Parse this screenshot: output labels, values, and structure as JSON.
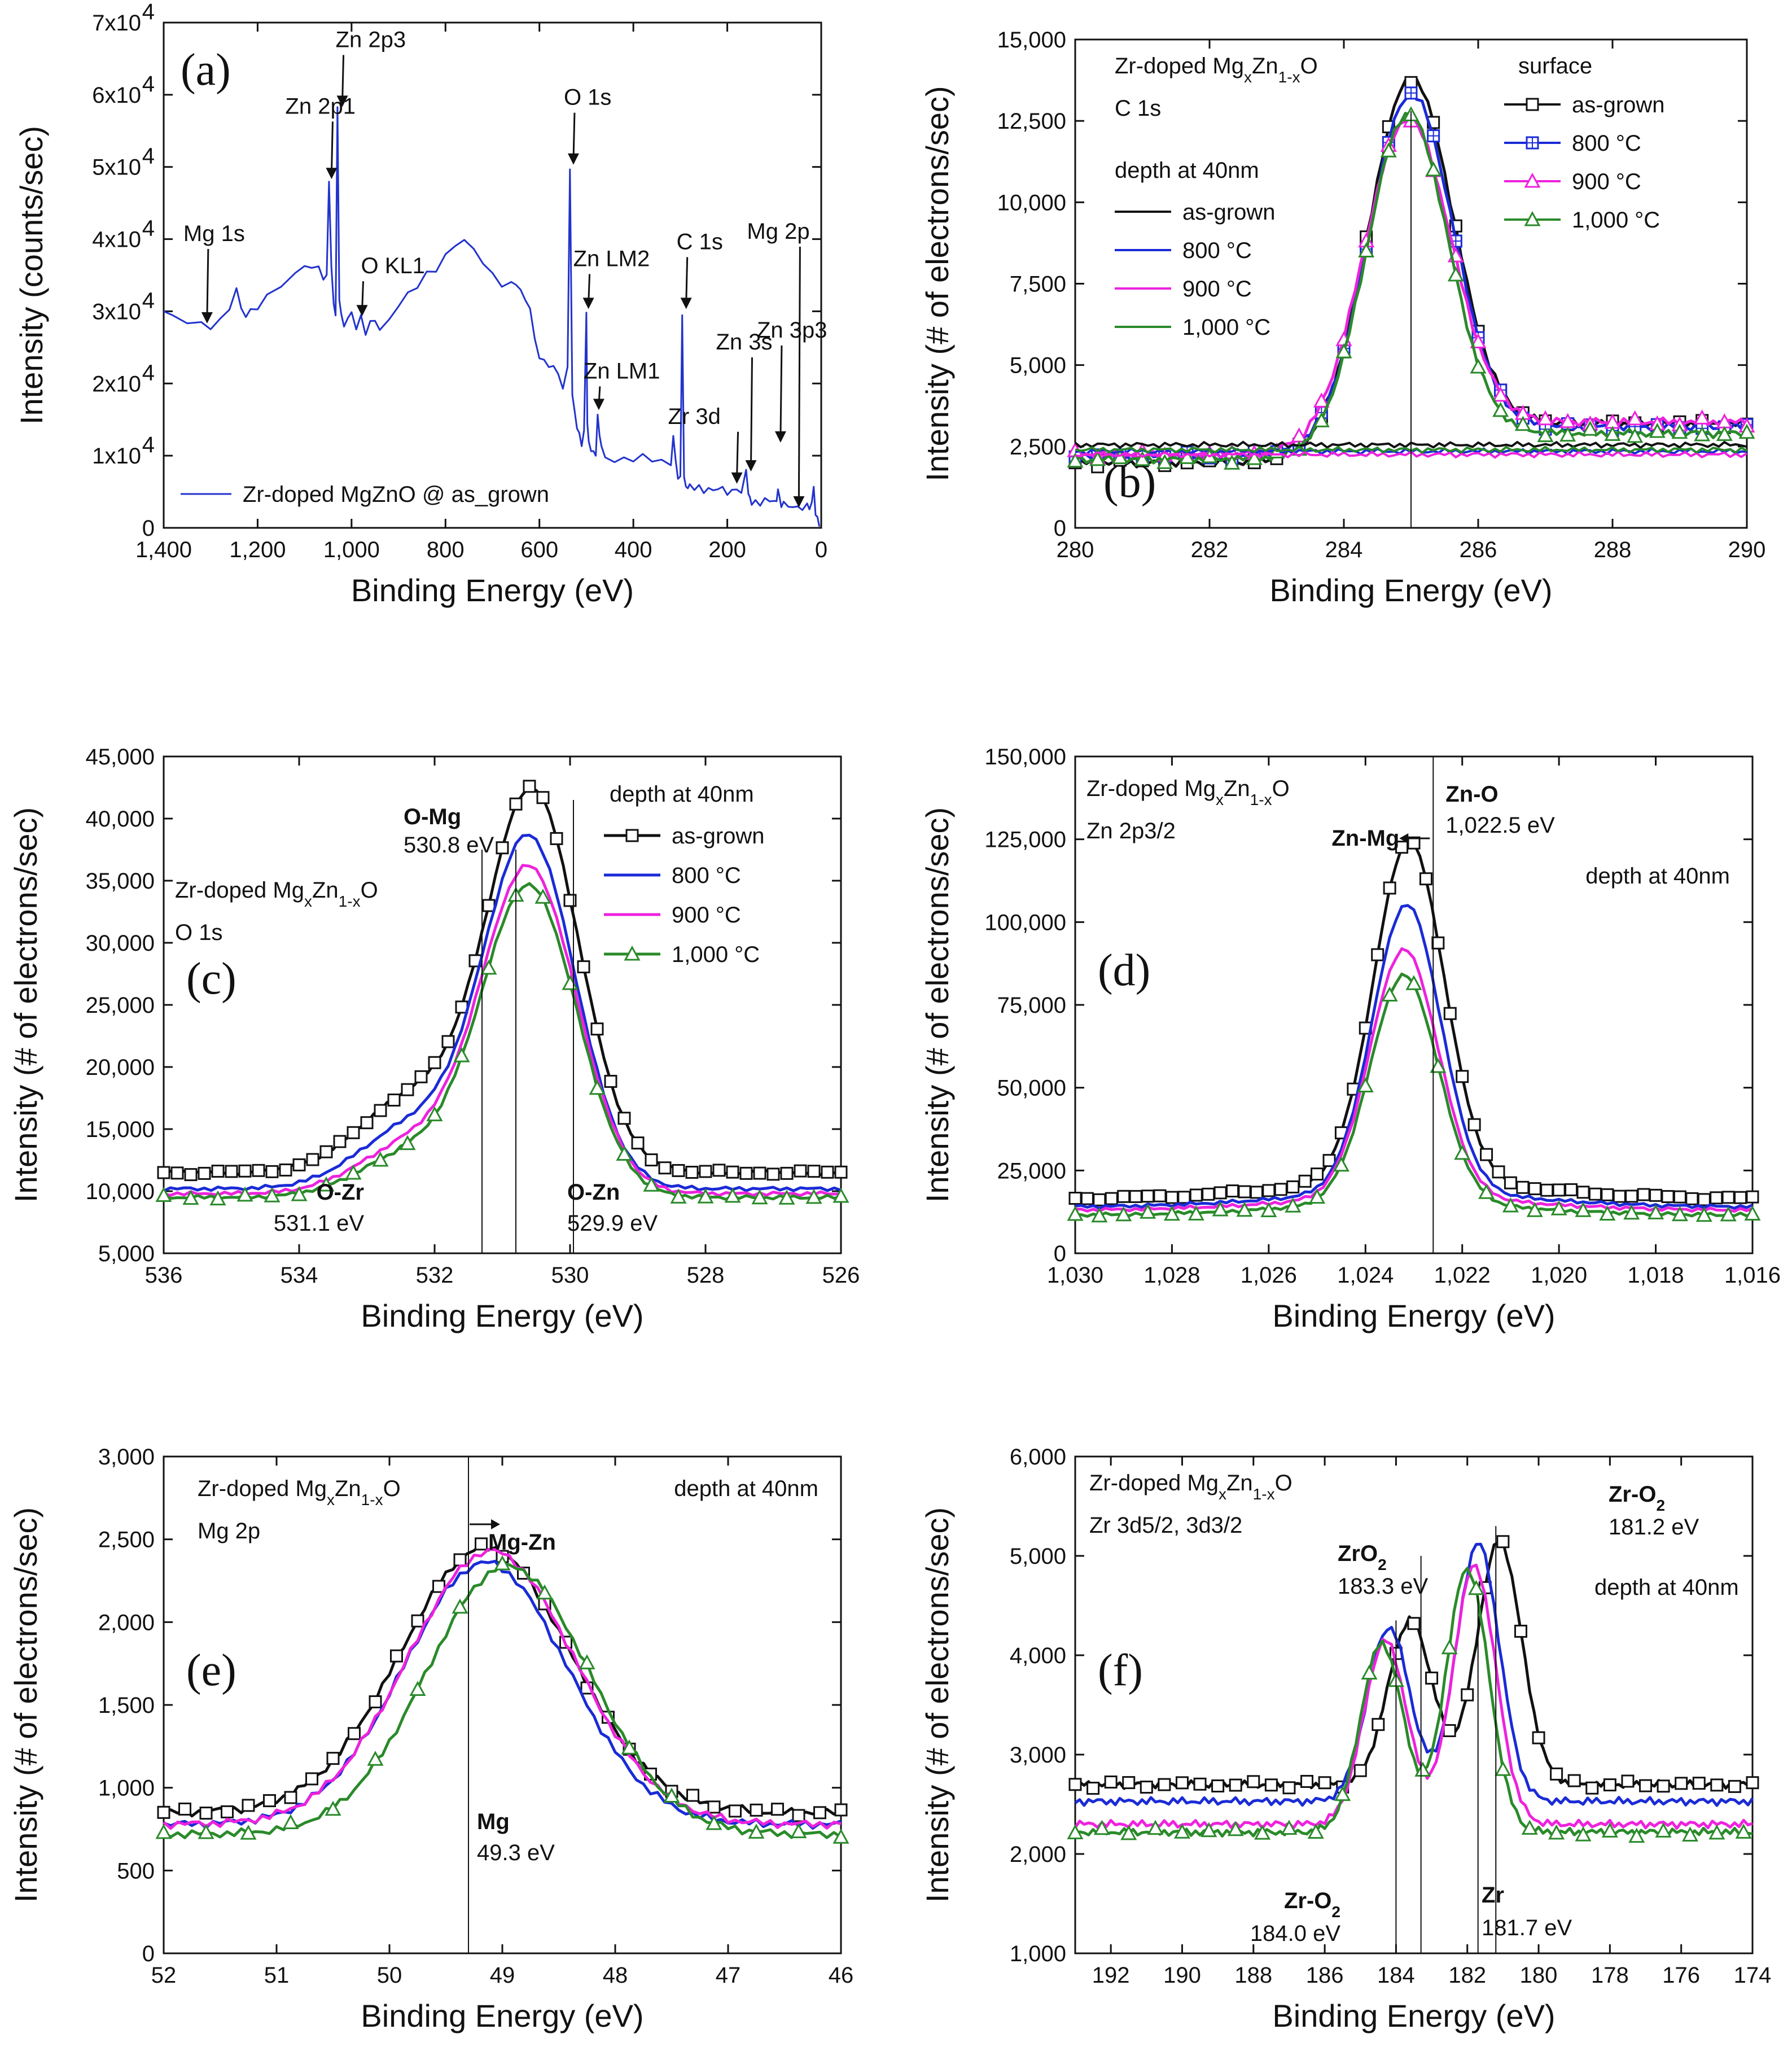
{
  "figure": {
    "colors": {
      "as_grown": "#111111",
      "c800": "#1a2bd6",
      "c900": "#ee22dd",
      "c1000": "#2a8a2a",
      "survey": "#2233cc"
    }
  },
  "chart_data": [
    {
      "id": "a",
      "panel": "(a)",
      "type": "line",
      "xlabel": "Binding Energy (eV)",
      "ylabel": "Intensity (counts/sec)",
      "xlim": [
        1400,
        0
      ],
      "ylim": [
        0,
        70000
      ],
      "xticks": [
        1400,
        1200,
        1000,
        800,
        600,
        400,
        200,
        0
      ],
      "xtick_labels": [
        "1,400",
        "1,200",
        "1,000",
        "800",
        "600",
        "400",
        "200",
        "0"
      ],
      "yticks": [
        0,
        10000,
        20000,
        30000,
        40000,
        50000,
        60000,
        70000
      ],
      "ytick_labels": [
        "0",
        "1x10",
        "2x10",
        "3x10",
        "4x10",
        "5x10",
        "6x10",
        "7x10"
      ],
      "ytick_exponent": "4",
      "legend": "Zr-doped MgZnO @ as_grown",
      "series": [
        {
          "name": "Zr-doped MgZnO @ as_grown",
          "color_key": "survey",
          "x": [
            1400,
            1380,
            1350,
            1320,
            1300,
            1280,
            1260,
            1245,
            1235,
            1225,
            1215,
            1200,
            1180,
            1150,
            1120,
            1100,
            1085,
            1070,
            1060,
            1053,
            1048,
            1043,
            1038,
            1034,
            1030,
            1026,
            1022,
            1016,
            1008,
            1000,
            990,
            980,
            970,
            960,
            950,
            940,
            920,
            900,
            880,
            860,
            840,
            820,
            800,
            780,
            760,
            740,
            720,
            700,
            680,
            660,
            650,
            640,
            630,
            620,
            610,
            600,
            590,
            580,
            570,
            560,
            550,
            540,
            535,
            530,
            525,
            520,
            515,
            510,
            505,
            500,
            498,
            495,
            490,
            485,
            480,
            476,
            472,
            468,
            460,
            440,
            420,
            400,
            380,
            360,
            340,
            320,
            315,
            310,
            305,
            300,
            296,
            292,
            288,
            284,
            280,
            270,
            260,
            250,
            240,
            230,
            220,
            210,
            200,
            190,
            180,
            170,
            160,
            155,
            152,
            148,
            140,
            130,
            120,
            110,
            100,
            95,
            92,
            89,
            85,
            80,
            70,
            60,
            50,
            40,
            30,
            25,
            20,
            16,
            12,
            8,
            4
          ],
          "y": [
            30000,
            29000,
            28500,
            28000,
            28200,
            28800,
            30500,
            33000,
            30000,
            29500,
            30000,
            31000,
            32000,
            33500,
            35000,
            36000,
            36500,
            36000,
            35000,
            34500,
            48000,
            36000,
            31000,
            30000,
            58000,
            32000,
            29000,
            28000,
            29000,
            30000,
            28000,
            29000,
            27000,
            28000,
            29000,
            27500,
            29000,
            31000,
            32000,
            33500,
            35000,
            36000,
            38000,
            39000,
            40000,
            38000,
            37000,
            35000,
            34000,
            34000,
            33500,
            33000,
            31000,
            31000,
            26000,
            24000,
            23000,
            22000,
            22500,
            21000,
            20000,
            22000,
            50000,
            18000,
            16000,
            14000,
            13000,
            12000,
            13000,
            30000,
            14000,
            12000,
            11000,
            10500,
            10500,
            15000,
            13000,
            11000,
            10000,
            9500,
            9500,
            9500,
            9500,
            9500,
            9300,
            9000,
            13000,
            9000,
            7000,
            6500,
            30000,
            7000,
            6000,
            5500,
            5500,
            5500,
            5500,
            5500,
            5400,
            5300,
            5200,
            5200,
            5000,
            5000,
            6000,
            4500,
            8000,
            4500,
            4000,
            3800,
            3600,
            3600,
            3600,
            3600,
            3700,
            3600,
            6000,
            4000,
            3200,
            3000,
            3000,
            3000,
            3000,
            3000,
            2800,
            2800,
            3000,
            6000,
            2000,
            1500,
            500
          ]
        }
      ],
      "annotations": [
        {
          "label": "Mg 1s",
          "x": 1310,
          "y": 28000
        },
        {
          "label": "Zn 2p1",
          "x": 1045,
          "y": 48000
        },
        {
          "label": "Zn 2p3",
          "x": 1022,
          "y": 58000
        },
        {
          "label": "O KL1",
          "x": 980,
          "y": 29000
        },
        {
          "label": "O 1s",
          "x": 530,
          "y": 50000
        },
        {
          "label": "Zn LM2",
          "x": 498,
          "y": 30000
        },
        {
          "label": "Zn LM1",
          "x": 476,
          "y": 16000
        },
        {
          "label": "C 1s",
          "x": 290,
          "y": 30000
        },
        {
          "label": "Zn 3p3",
          "x": 89,
          "y": 11500
        },
        {
          "label": "Zn 3s",
          "x": 152,
          "y": 7500
        },
        {
          "label": "Zr 3d",
          "x": 182,
          "y": 5800
        },
        {
          "label": "Mg 2p",
          "x": 50,
          "y": 2500
        }
      ]
    },
    {
      "id": "b",
      "panel": "(b)",
      "type": "line",
      "xlabel": "Binding Energy (eV)",
      "ylabel": "Intensity (# of electrons/sec)",
      "xlim": [
        280,
        290
      ],
      "ylim": [
        0,
        15000
      ],
      "xticks": [
        280,
        282,
        284,
        286,
        288,
        290
      ],
      "xtick_labels": [
        "280",
        "282",
        "284",
        "286",
        "288",
        "290"
      ],
      "yticks": [
        0,
        2500,
        5000,
        7500,
        10000,
        12500,
        15000
      ],
      "ytick_labels": [
        "0",
        "2,500",
        "5,000",
        "7,500",
        "10,000",
        "12,500",
        "15,000"
      ],
      "text_title": "Zr-doped Mg",
      "text_title_sub_x": "x",
      "text_title_mid": "Zn",
      "text_title_sub_1x": "1-x",
      "text_title_end": "O",
      "text_core": "C 1s",
      "legend_surface_title": "surface",
      "legend_depth_title": "depth at 40nm",
      "labels": {
        "as_grown": "as-grown",
        "c800": "800 °C",
        "c900": "900 °C",
        "c1000": "1,000 °C"
      },
      "vline": 285,
      "series": [
        {
          "name": "surface as-grown",
          "color_key": "as_grown",
          "marker": "square",
          "baseline": 2000,
          "peak": 10700,
          "center": 285,
          "sigma": 0.62,
          "tail": 1200
        },
        {
          "name": "surface 800 °C",
          "color_key": "c800",
          "marker": "square-plus",
          "baseline": 2200,
          "peak": 10300,
          "center": 285,
          "sigma": 0.62,
          "tail": 900
        },
        {
          "name": "surface 900 °C",
          "color_key": "c900",
          "marker": "triangle",
          "baseline": 2250,
          "peak": 9400,
          "center": 284.95,
          "sigma": 0.64,
          "tail": 1000
        },
        {
          "name": "surface 1,000 °C",
          "color_key": "c1000",
          "marker": "triangle",
          "baseline": 2100,
          "peak": 9900,
          "center": 284.95,
          "sigma": 0.6,
          "tail": 800
        },
        {
          "name": "depth as-grown",
          "color_key": "as_grown",
          "marker": "none",
          "baseline": 2550,
          "peak": 0,
          "center": 285,
          "sigma": 1,
          "tail": 0
        },
        {
          "name": "depth 800 °C",
          "color_key": "c800",
          "marker": "none",
          "baseline": 2350,
          "peak": 0,
          "center": 285,
          "sigma": 1,
          "tail": 0
        },
        {
          "name": "depth 900 °C",
          "color_key": "c900",
          "marker": "none",
          "baseline": 2250,
          "peak": 0,
          "center": 285,
          "sigma": 1,
          "tail": 0
        },
        {
          "name": "depth 1,000 °C",
          "color_key": "c1000",
          "marker": "none",
          "baseline": 2400,
          "peak": 0,
          "center": 285,
          "sigma": 1,
          "tail": 0
        }
      ]
    },
    {
      "id": "c",
      "panel": "(c)",
      "type": "line",
      "xlabel": "Binding Energy (eV)",
      "ylabel": "Intensity (# of electrons/sec)",
      "xlim": [
        536,
        526
      ],
      "ylim": [
        5000,
        45000
      ],
      "xticks": [
        536,
        534,
        532,
        530,
        528,
        526
      ],
      "xtick_labels": [
        "536",
        "534",
        "532",
        "530",
        "528",
        "526"
      ],
      "yticks": [
        5000,
        10000,
        15000,
        20000,
        25000,
        30000,
        35000,
        40000,
        45000
      ],
      "ytick_labels": [
        "5,000",
        "10,000",
        "15,000",
        "20,000",
        "25,000",
        "30,000",
        "35,000",
        "40,000",
        "45,000"
      ],
      "text_title": "Zr-doped Mg",
      "text_title_sub_x": "x",
      "text_title_mid": "Zn",
      "text_title_sub_1x": "1-x",
      "text_title_end": "O",
      "text_core": "O 1s",
      "legend_depth_title": "depth at 40nm",
      "labels": {
        "as_grown": "as-grown",
        "c800": "800 °C",
        "c900": "900 °C",
        "c1000": "1,000 °C"
      },
      "peak_labels": [
        {
          "bold": "O-Mg",
          "value": "530.8 eV"
        },
        {
          "bold": "O-Zr",
          "value": "531.1 eV"
        },
        {
          "bold": "O-Zn",
          "value": "529.9 eV"
        }
      ],
      "vlines": [
        531.3,
        530.8,
        529.95
      ],
      "series": [
        {
          "name": "as-grown",
          "color_key": "as_grown",
          "marker": "square",
          "baseline": 11500,
          "peak": 30500,
          "center": 530.55,
          "sigma": 0.68,
          "shoulder": 6000
        },
        {
          "name": "800 °C",
          "color_key": "c800",
          "marker": "none",
          "baseline": 10200,
          "peak": 28000,
          "center": 530.6,
          "sigma": 0.68,
          "shoulder": 5000
        },
        {
          "name": "900 °C",
          "color_key": "c900",
          "marker": "none",
          "baseline": 9800,
          "peak": 26000,
          "center": 530.6,
          "sigma": 0.7,
          "shoulder": 4000
        },
        {
          "name": "1,000 °C",
          "color_key": "c1000",
          "marker": "triangle",
          "baseline": 9500,
          "peak": 24800,
          "center": 530.6,
          "sigma": 0.7,
          "shoulder": 3500
        }
      ]
    },
    {
      "id": "d",
      "panel": "(d)",
      "type": "line",
      "xlabel": "Binding Energy (eV)",
      "ylabel": "Intensity (# of electrons/sec)",
      "xlim": [
        1030,
        1016
      ],
      "ylim": [
        0,
        150000
      ],
      "xticks": [
        1030,
        1028,
        1026,
        1024,
        1022,
        1020,
        1018,
        1016
      ],
      "xtick_labels": [
        "1,030",
        "1,028",
        "1,026",
        "1,024",
        "1,022",
        "1,020",
        "1,018",
        "1,016"
      ],
      "yticks": [
        0,
        25000,
        50000,
        75000,
        100000,
        125000,
        150000
      ],
      "ytick_labels": [
        "0",
        "25,000",
        "50,000",
        "75,000",
        "100,000",
        "125,000",
        "150,000"
      ],
      "text_title": "Zr-doped Mg",
      "text_title_sub_x": "x",
      "text_title_mid": "Zn",
      "text_title_sub_1x": "1-x",
      "text_title_end": "O",
      "text_core": "Zn 2p3/2",
      "depth_label": "depth at 40nm",
      "peak_labels": [
        {
          "bold": "Zn-O",
          "value": "1,022.5 eV"
        },
        {
          "bold": "Zn-Mg",
          "value": ""
        }
      ],
      "vline": 1022.6,
      "series": [
        {
          "name": "as-grown",
          "color_key": "as_grown",
          "marker": "square",
          "baseline": 16500,
          "peak": 103000,
          "center": 1023.1,
          "sigma": 0.72
        },
        {
          "name": "800 °C",
          "color_key": "c800",
          "marker": "none",
          "baseline": 14000,
          "peak": 87000,
          "center": 1023.15,
          "sigma": 0.7
        },
        {
          "name": "900 °C",
          "color_key": "c900",
          "marker": "none",
          "baseline": 13000,
          "peak": 75000,
          "center": 1023.2,
          "sigma": 0.7
        },
        {
          "name": "1,000 °C",
          "color_key": "c1000",
          "marker": "triangle",
          "baseline": 11500,
          "peak": 69000,
          "center": 1023.2,
          "sigma": 0.7
        }
      ]
    },
    {
      "id": "e",
      "panel": "(e)",
      "type": "line",
      "xlabel": "Binding Energy (eV)",
      "ylabel": "Intensity (# of electrons/sec)",
      "xlim": [
        52,
        46
      ],
      "ylim": [
        0,
        3000
      ],
      "xticks": [
        52,
        51,
        50,
        49,
        48,
        47,
        46
      ],
      "xtick_labels": [
        "52",
        "51",
        "50",
        "49",
        "48",
        "47",
        "46"
      ],
      "yticks": [
        0,
        500,
        1000,
        1500,
        2000,
        2500,
        3000
      ],
      "ytick_labels": [
        "0",
        "500",
        "1,000",
        "1,500",
        "2,000",
        "2,500",
        "3,000"
      ],
      "text_title": "Zr-doped Mg",
      "text_title_sub_x": "x",
      "text_title_mid": "Zn",
      "text_title_sub_1x": "1-x",
      "text_title_end": "O",
      "text_core": "Mg 2p",
      "depth_label": "depth at 40nm",
      "peak_labels": [
        {
          "bold": "Mg-Zn",
          "value": ""
        },
        {
          "bold": "Mg",
          "value": "49.3 eV"
        }
      ],
      "vline": 49.3,
      "series": [
        {
          "name": "as-grown",
          "color_key": "as_grown",
          "marker": "square",
          "baseline": 850,
          "peak": 1600,
          "center": 49.15,
          "sigma": 0.75
        },
        {
          "name": "800 °C",
          "color_key": "c800",
          "marker": "none",
          "baseline": 780,
          "peak": 1580,
          "center": 49.15,
          "sigma": 0.72
        },
        {
          "name": "900 °C",
          "color_key": "c900",
          "marker": "none",
          "baseline": 780,
          "peak": 1650,
          "center": 49.1,
          "sigma": 0.74
        },
        {
          "name": "1,000 °C",
          "color_key": "c1000",
          "marker": "triangle",
          "baseline": 720,
          "peak": 1620,
          "center": 48.95,
          "sigma": 0.72
        }
      ]
    },
    {
      "id": "f",
      "panel": "(f)",
      "type": "line",
      "xlabel": "Binding Energy (eV)",
      "ylabel": "Intensity (# of electrons/sec)",
      "xlim": [
        193,
        174
      ],
      "ylim": [
        1000,
        6000
      ],
      "xticks": [
        192,
        190,
        188,
        186,
        184,
        182,
        180,
        178,
        176,
        174
      ],
      "xtick_labels": [
        "192",
        "190",
        "188",
        "186",
        "184",
        "182",
        "180",
        "178",
        "176",
        "174"
      ],
      "yticks": [
        1000,
        2000,
        3000,
        4000,
        5000,
        6000
      ],
      "ytick_labels": [
        "1,000",
        "2,000",
        "3,000",
        "4,000",
        "5,000",
        "6,000"
      ],
      "text_title": "Zr-doped Mg",
      "text_title_sub_x": "x",
      "text_title_mid": "Zn",
      "text_title_sub_1x": "1-x",
      "text_title_end": "O",
      "text_core": "Zr 3d5/2, 3d3/2",
      "depth_label": "depth at 40nm",
      "peak_labels": [
        {
          "bold": "Zr-O",
          "sub": "2",
          "value": "181.2 eV"
        },
        {
          "bold": "ZrO",
          "sub": "2",
          "value": "183.3 eV"
        },
        {
          "bold": "Zr-O",
          "sub": "2",
          "value": "184.0 eV"
        },
        {
          "bold": "Zr",
          "sub": "",
          "value": "181.7 eV"
        }
      ],
      "vlines": [
        184.0,
        183.3,
        181.7,
        181.2
      ],
      "series": [
        {
          "name": "as-grown",
          "color_key": "as_grown",
          "marker": "square",
          "baseline": 2700,
          "p1": 1650,
          "c1": 183.6,
          "p2": 2450,
          "c2": 181.1,
          "sigma": 0.62
        },
        {
          "name": "800 °C",
          "color_key": "c800",
          "marker": "none",
          "baseline": 2530,
          "p1": 1750,
          "c1": 184.2,
          "p2": 2600,
          "c2": 181.7,
          "sigma": 0.6
        },
        {
          "name": "900 °C",
          "color_key": "c900",
          "marker": "none",
          "baseline": 2300,
          "p1": 1850,
          "c1": 184.3,
          "p2": 2600,
          "c2": 181.8,
          "sigma": 0.6
        },
        {
          "name": "1,000 °C",
          "color_key": "c1000",
          "marker": "triangle",
          "baseline": 2220,
          "p1": 1900,
          "c1": 184.4,
          "p2": 2650,
          "c2": 182.0,
          "sigma": 0.6
        }
      ]
    }
  ]
}
